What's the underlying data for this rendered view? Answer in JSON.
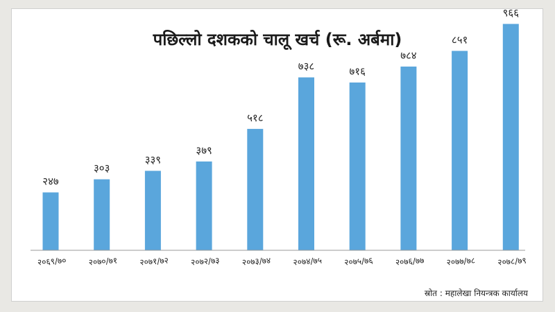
{
  "chart_data": {
    "type": "bar",
    "title": "पछिल्लो दशकको चालू खर्च (रू. अर्बमा)",
    "source": "स्रोत : महालेखा नियन्त्रक कार्यालय",
    "categories": [
      "२०६९/७०",
      "२०७०/७१",
      "२०७१/७२",
      "२०७२/७३",
      "२०७३/७४",
      "२०७४/७५",
      "२०७५/७६",
      "२०७६/७७",
      "२०७७/७८",
      "२०७८/७९"
    ],
    "values": [
      247,
      303,
      339,
      379,
      518,
      738,
      716,
      784,
      851,
      966
    ],
    "value_labels": [
      "२४७",
      "३०३",
      "३३९",
      "३७९",
      "५१८",
      "७३८",
      "७१६",
      "७८४",
      "८५१",
      "९६६"
    ],
    "ylim": [
      0,
      1000
    ],
    "grid": false,
    "bar_color": "#5aa6dc",
    "axis_color": "#9a9a9a"
  }
}
